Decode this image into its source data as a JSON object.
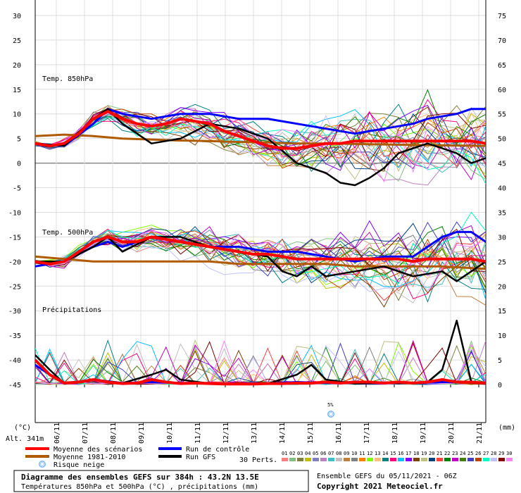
{
  "chart_data": {
    "type": "line",
    "title": "Diagramme des ensembles GEFS sur 384h : 43.2N 13.5E",
    "subtitle": "Températures 850hPa et 500hPa (°C) , précipitations (mm)",
    "run_info": "Ensemble GEFS du 05/11/2021 - 06Z",
    "copyright": "Copyright 2021 Meteociel.fr",
    "altitude": "Alt. 341m",
    "left_unit": "(°C)",
    "right_unit": "(mm)",
    "left_axis": {
      "ticks": [
        30,
        25,
        20,
        15,
        10,
        5,
        0,
        -5,
        -10,
        -15,
        -20,
        -25,
        -30,
        -35,
        -40,
        -45
      ]
    },
    "right_axis": {
      "ticks": [
        75,
        70,
        65,
        60,
        55,
        50,
        45,
        40,
        35,
        30,
        25,
        20,
        15,
        10,
        5,
        0
      ]
    },
    "x_labels": [
      "06/11",
      "07/11",
      "08/11",
      "09/11",
      "10/11",
      "11/11",
      "12/11",
      "13/11",
      "14/11",
      "15/11",
      "16/11",
      "17/11",
      "18/11",
      "19/11",
      "20/11",
      "21/11"
    ],
    "panel_labels": {
      "t850": "Temp. 850hPa",
      "t500": "Temp. 500hPa",
      "precip": "Précipitations"
    },
    "snow_risk_label": "5%",
    "legend": {
      "mean": "Moyenne des scénarios",
      "climo": "Moyenne 1981-2010",
      "snow": "Risque neige",
      "control": "Run de contrôle",
      "gfs": "Run GFS",
      "perts_label": "30 Perts.",
      "perts": [
        "01",
        "02",
        "03",
        "04",
        "05",
        "06",
        "07",
        "08",
        "09",
        "10",
        "11",
        "12",
        "13",
        "14",
        "15",
        "16",
        "17",
        "18",
        "19",
        "20",
        "21",
        "22",
        "23",
        "24",
        "25",
        "26",
        "27",
        "28",
        "29",
        "30"
      ]
    },
    "colors": {
      "mean": "#ff0000",
      "climo": "#b05a00",
      "control": "#0000ff",
      "gfs": "#000000",
      "perts": [
        "#ff8080",
        "#80c080",
        "#808040",
        "#c0c000",
        "#8080c0",
        "#c080c0",
        "#40c0c0",
        "#c0c0c0",
        "#c08040",
        "#808080",
        "#ff8000",
        "#80ff00",
        "#ffc080",
        "#008080",
        "#ff0080",
        "#00c0ff",
        "#8000ff",
        "#804000",
        "#c0c080",
        "#004080",
        "#ff4040",
        "#008000",
        "#c000c0",
        "#408000",
        "#4040c0",
        "#c04000",
        "#00ffc0",
        "#c0c0ff",
        "#800000",
        "#ff80ff"
      ]
    },
    "series": {
      "t850": {
        "mean": [
          [
            0,
            4
          ],
          [
            1,
            3.5
          ],
          [
            2,
            4
          ],
          [
            3,
            6
          ],
          [
            4,
            9
          ],
          [
            5,
            10.5
          ],
          [
            6,
            9
          ],
          [
            7,
            8
          ],
          [
            8,
            7.5
          ],
          [
            9,
            8
          ],
          [
            10,
            9
          ],
          [
            11,
            8.5
          ],
          [
            12,
            8
          ],
          [
            13,
            6.5
          ],
          [
            14,
            5.5
          ],
          [
            15,
            4.5
          ],
          [
            16,
            3.5
          ],
          [
            17,
            3
          ],
          [
            18,
            3
          ],
          [
            19,
            3.5
          ],
          [
            20,
            4
          ],
          [
            21,
            4
          ],
          [
            22,
            4.5
          ],
          [
            23,
            4.5
          ],
          [
            24,
            4.5
          ],
          [
            25,
            4.5
          ],
          [
            26,
            4.5
          ],
          [
            27,
            4.5
          ],
          [
            28,
            4.5
          ],
          [
            29,
            4.5
          ],
          [
            30,
            4.5
          ],
          [
            31,
            4
          ]
        ],
        "climo": [
          [
            0,
            5.5
          ],
          [
            2,
            5.8
          ],
          [
            4,
            5.5
          ],
          [
            6,
            5
          ],
          [
            8,
            4.8
          ],
          [
            10,
            4.6
          ],
          [
            12,
            4.5
          ],
          [
            14,
            4.3
          ],
          [
            16,
            4.2
          ],
          [
            18,
            4
          ],
          [
            20,
            4
          ],
          [
            22,
            3.9
          ],
          [
            24,
            3.8
          ],
          [
            26,
            3.7
          ],
          [
            28,
            3.6
          ],
          [
            31,
            3.5
          ]
        ],
        "control": [
          [
            0,
            4
          ],
          [
            2,
            3.5
          ],
          [
            4,
            8
          ],
          [
            5,
            11
          ],
          [
            6,
            10
          ],
          [
            8,
            9
          ],
          [
            10,
            10
          ],
          [
            12,
            10
          ],
          [
            14,
            9
          ],
          [
            16,
            9
          ],
          [
            18,
            8
          ],
          [
            20,
            7
          ],
          [
            22,
            6
          ],
          [
            24,
            7
          ],
          [
            26,
            8
          ],
          [
            27,
            9
          ],
          [
            28,
            9.5
          ],
          [
            29,
            10
          ],
          [
            30,
            11
          ],
          [
            31,
            11
          ]
        ],
        "gfs": [
          [
            0,
            4
          ],
          [
            2,
            3.5
          ],
          [
            4,
            9
          ],
          [
            5,
            11
          ],
          [
            6,
            8
          ],
          [
            8,
            4
          ],
          [
            10,
            5
          ],
          [
            12,
            8
          ],
          [
            14,
            7
          ],
          [
            16,
            5
          ],
          [
            18,
            0
          ],
          [
            20,
            -2
          ],
          [
            21,
            -4
          ],
          [
            22,
            -4.5
          ],
          [
            23,
            -3
          ],
          [
            24,
            -1
          ],
          [
            25,
            2
          ],
          [
            26,
            3
          ],
          [
            27,
            4
          ],
          [
            28,
            3
          ],
          [
            29,
            2
          ],
          [
            30,
            0
          ],
          [
            31,
            1
          ]
        ]
      },
      "t500": {
        "mean": [
          [
            0,
            -20
          ],
          [
            1,
            -20.5
          ],
          [
            2,
            -20
          ],
          [
            3,
            -18
          ],
          [
            4,
            -16
          ],
          [
            5,
            -15
          ],
          [
            6,
            -16
          ],
          [
            7,
            -16
          ],
          [
            8,
            -15
          ],
          [
            9,
            -15.5
          ],
          [
            10,
            -16
          ],
          [
            11,
            -16.5
          ],
          [
            12,
            -17
          ],
          [
            13,
            -17.5
          ],
          [
            14,
            -18
          ],
          [
            15,
            -18.5
          ],
          [
            16,
            -18.5
          ],
          [
            17,
            -19
          ],
          [
            18,
            -19.5
          ],
          [
            19,
            -19.5
          ],
          [
            20,
            -19.5
          ],
          [
            21,
            -19.5
          ],
          [
            22,
            -19.5
          ],
          [
            23,
            -19.5
          ],
          [
            24,
            -19.5
          ],
          [
            25,
            -19.5
          ],
          [
            26,
            -20
          ],
          [
            27,
            -19.5
          ],
          [
            28,
            -19.5
          ],
          [
            29,
            -19.5
          ],
          [
            30,
            -19.5
          ],
          [
            31,
            -20
          ]
        ],
        "climo": [
          [
            0,
            -19
          ],
          [
            2,
            -19.5
          ],
          [
            4,
            -20
          ],
          [
            6,
            -20
          ],
          [
            8,
            -20
          ],
          [
            10,
            -20
          ],
          [
            12,
            -20
          ],
          [
            14,
            -20.5
          ],
          [
            16,
            -20.5
          ],
          [
            18,
            -20.5
          ],
          [
            20,
            -20.5
          ],
          [
            22,
            -21
          ],
          [
            24,
            -21
          ],
          [
            26,
            -21
          ],
          [
            28,
            -21
          ],
          [
            31,
            -21.5
          ]
        ],
        "control": [
          [
            0,
            -21
          ],
          [
            2,
            -20
          ],
          [
            4,
            -17
          ],
          [
            5,
            -16
          ],
          [
            6,
            -17
          ],
          [
            8,
            -15
          ],
          [
            10,
            -16
          ],
          [
            12,
            -17
          ],
          [
            14,
            -17
          ],
          [
            16,
            -18
          ],
          [
            18,
            -18
          ],
          [
            20,
            -19
          ],
          [
            22,
            -20
          ],
          [
            24,
            -19
          ],
          [
            26,
            -19
          ],
          [
            27,
            -17
          ],
          [
            28,
            -15
          ],
          [
            29,
            -14
          ],
          [
            30,
            -14
          ],
          [
            31,
            -16
          ]
        ],
        "gfs": [
          [
            0,
            -20
          ],
          [
            2,
            -20
          ],
          [
            4,
            -17
          ],
          [
            5,
            -15
          ],
          [
            6,
            -18
          ],
          [
            8,
            -15
          ],
          [
            10,
            -15
          ],
          [
            12,
            -17
          ],
          [
            14,
            -18
          ],
          [
            16,
            -19
          ],
          [
            17,
            -22
          ],
          [
            18,
            -23
          ],
          [
            19,
            -21
          ],
          [
            20,
            -23
          ],
          [
            22,
            -22
          ],
          [
            24,
            -21
          ],
          [
            26,
            -23
          ],
          [
            28,
            -22
          ],
          [
            29,
            -24
          ],
          [
            30,
            -22
          ],
          [
            31,
            -20
          ]
        ]
      },
      "precip": {
        "mean": [
          [
            0,
            5
          ],
          [
            1,
            2
          ],
          [
            2,
            0.3
          ],
          [
            3,
            0.5
          ],
          [
            4,
            1
          ],
          [
            5,
            0.5
          ],
          [
            6,
            0.2
          ],
          [
            7,
            0.3
          ],
          [
            8,
            1
          ],
          [
            9,
            0.5
          ],
          [
            10,
            0.2
          ],
          [
            11,
            0.3
          ],
          [
            12,
            0.2
          ],
          [
            13,
            0.1
          ],
          [
            14,
            0.1
          ],
          [
            15,
            0.1
          ],
          [
            16,
            0.2
          ],
          [
            17,
            0.2
          ],
          [
            18,
            0.3
          ],
          [
            19,
            0.3
          ],
          [
            20,
            0.5
          ],
          [
            21,
            0.3
          ],
          [
            22,
            0.5
          ],
          [
            23,
            0.5
          ],
          [
            24,
            0.3
          ],
          [
            25,
            0.5
          ],
          [
            26,
            0.3
          ],
          [
            27,
            0.5
          ],
          [
            28,
            1
          ],
          [
            29,
            0.5
          ],
          [
            30,
            0.5
          ],
          [
            31,
            0.3
          ]
        ],
        "control": [
          [
            0,
            4
          ],
          [
            1,
            2
          ],
          [
            2,
            0.2
          ],
          [
            4,
            1
          ],
          [
            6,
            0.3
          ],
          [
            8,
            0.5
          ],
          [
            10,
            0.3
          ],
          [
            12,
            0.2
          ],
          [
            14,
            0.1
          ],
          [
            16,
            0.2
          ],
          [
            18,
            0.5
          ],
          [
            20,
            0.3
          ],
          [
            22,
            0.3
          ],
          [
            24,
            0.3
          ],
          [
            26,
            0.3
          ],
          [
            28,
            0.5
          ],
          [
            30,
            0.5
          ],
          [
            31,
            0.2
          ]
        ],
        "gfs": [
          [
            0,
            6
          ],
          [
            1,
            3
          ],
          [
            2,
            0.2
          ],
          [
            4,
            1
          ],
          [
            6,
            0.3
          ],
          [
            8,
            2
          ],
          [
            9,
            3
          ],
          [
            10,
            1
          ],
          [
            12,
            0.2
          ],
          [
            14,
            0.1
          ],
          [
            16,
            0.2
          ],
          [
            18,
            2
          ],
          [
            19,
            4
          ],
          [
            20,
            1
          ],
          [
            22,
            0.2
          ],
          [
            24,
            0.3
          ],
          [
            26,
            0.3
          ],
          [
            27,
            0.5
          ],
          [
            28,
            3
          ],
          [
            29,
            13
          ],
          [
            30,
            0.5
          ],
          [
            31,
            0.2
          ]
        ]
      }
    }
  }
}
